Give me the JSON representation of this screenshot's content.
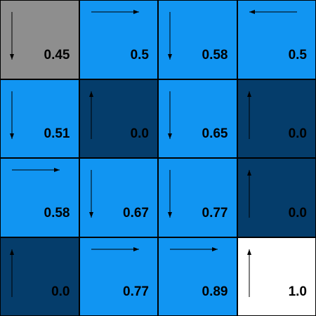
{
  "colors": {
    "start": "#8e8e8e",
    "normal": "#1195f2",
    "hole": "#053d6b",
    "goal": "#ffffff"
  },
  "grid": {
    "rows": 4,
    "cols": 4,
    "cells": [
      {
        "value": "0.45",
        "type": "start",
        "arrow": "down"
      },
      {
        "value": "0.5",
        "type": "normal",
        "arrow": "right"
      },
      {
        "value": "0.58",
        "type": "normal",
        "arrow": "down"
      },
      {
        "value": "0.5",
        "type": "normal",
        "arrow": "left"
      },
      {
        "value": "0.51",
        "type": "normal",
        "arrow": "down"
      },
      {
        "value": "0.0",
        "type": "hole",
        "arrow": "up"
      },
      {
        "value": "0.65",
        "type": "normal",
        "arrow": "down"
      },
      {
        "value": "0.0",
        "type": "hole",
        "arrow": "up"
      },
      {
        "value": "0.58",
        "type": "normal",
        "arrow": "right"
      },
      {
        "value": "0.67",
        "type": "normal",
        "arrow": "down"
      },
      {
        "value": "0.77",
        "type": "normal",
        "arrow": "down"
      },
      {
        "value": "0.0",
        "type": "hole",
        "arrow": "up"
      },
      {
        "value": "0.0",
        "type": "hole",
        "arrow": "up"
      },
      {
        "value": "0.77",
        "type": "normal",
        "arrow": "right"
      },
      {
        "value": "0.89",
        "type": "normal",
        "arrow": "right"
      },
      {
        "value": "1.0",
        "type": "goal",
        "arrow": "up"
      }
    ]
  }
}
